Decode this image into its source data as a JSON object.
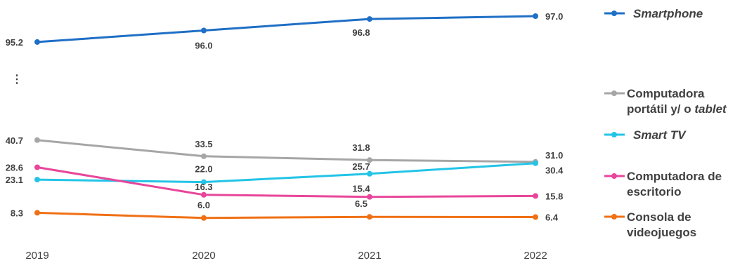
{
  "chart_data": {
    "type": "line",
    "x": [
      "2019",
      "2020",
      "2021",
      "2022"
    ],
    "axis_break_symbol": "⋮",
    "series": [
      {
        "id": "smartphone",
        "name": "Smartphone",
        "legend_lines": [
          [
            {
              "t": "Smartphone",
              "i": true
            }
          ]
        ],
        "color": "#1f6fc6",
        "values": [
          95.2,
          96.0,
          96.8,
          97.0
        ],
        "labels": [
          "95.2",
          "96.0",
          "96.8",
          "97.0"
        ]
      },
      {
        "id": "laptop",
        "name": "Computadora portátil y/ o tablet",
        "legend_lines": [
          [
            {
              "t": "Computadora",
              "i": false
            }
          ],
          [
            {
              "t": "portátil y/ o ",
              "i": false
            },
            {
              "t": "tablet",
              "i": true
            }
          ]
        ],
        "color": "#a6a6a6",
        "values": [
          40.7,
          33.5,
          31.8,
          31.0
        ],
        "labels": [
          "40.7",
          "33.5",
          "31.8",
          "31.0"
        ]
      },
      {
        "id": "smarttv",
        "name": "Smart TV",
        "legend_lines": [
          [
            {
              "t": "Smart TV",
              "i": true
            }
          ]
        ],
        "color": "#23c4e6",
        "values": [
          23.1,
          22.0,
          25.7,
          30.4
        ],
        "labels": [
          "23.1",
          "22.0",
          "25.7",
          "30.4"
        ]
      },
      {
        "id": "desktop",
        "name": "Computadora de escritorio",
        "legend_lines": [
          [
            {
              "t": "Computadora de",
              "i": false
            }
          ],
          [
            {
              "t": "escritorio",
              "i": false
            }
          ]
        ],
        "color": "#e8469a",
        "values": [
          28.6,
          16.3,
          15.4,
          15.8
        ],
        "labels": [
          "28.6",
          "16.3",
          "15.4",
          "15.8"
        ]
      },
      {
        "id": "console",
        "name": "Consola de videojuegos",
        "legend_lines": [
          [
            {
              "t": "Consola de",
              "i": false
            }
          ],
          [
            {
              "t": "videojuegos",
              "i": false
            }
          ]
        ],
        "color": "#f07014",
        "values": [
          8.3,
          6.0,
          6.5,
          6.4
        ],
        "labels": [
          "8.3",
          "6.0",
          "6.5",
          "6.4"
        ]
      }
    ]
  }
}
